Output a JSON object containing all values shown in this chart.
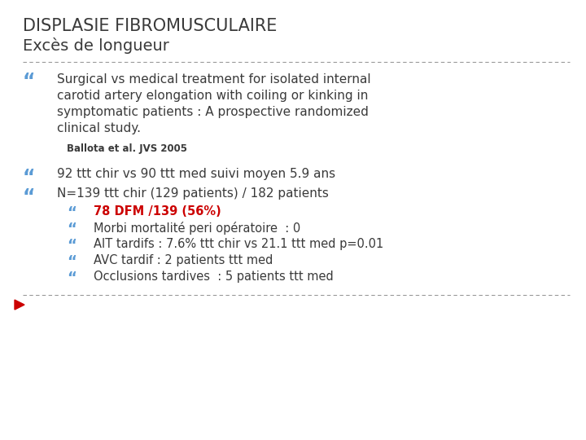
{
  "title_line1": "DISPLASIE FIBROMUSCULAIRE",
  "title_line2": "Excès de longueur",
  "title_color": "#3a3a3a",
  "title1_fontsize": 15,
  "title2_fontsize": 14,
  "separator_color": "#999999",
  "bullet_color": "#5b9bd5",
  "bullet_char": "“",
  "sub_bullet_char": "“",
  "body_color": "#3a3a3a",
  "bold_color": "#cc0000",
  "reference_color": "#3a3a3a",
  "arrow_color": "#cc0000",
  "background_color": "#ffffff",
  "bullet1_text_lines": [
    "Surgical vs medical treatment for isolated internal",
    "carotid artery elongation with coiling or kinking in",
    "symptomatic patients : A prospective randomized",
    "clinical study."
  ],
  "reference_text": "Ballota et al. JVS 2005",
  "bullet2_text": "92 ttt chir vs 90 ttt med suivi moyen 5.9 ans",
  "bullet3_text": "N=139 ttt chir (129 patients) / 182 patients",
  "sub_bullets": [
    {
      "text": "78 DFM /139 (56%)",
      "bold": true
    },
    {
      "text": "Morbi mortalité peri opératoire  : 0",
      "bold": false
    },
    {
      "text": "AIT tardifs : 7.6% ttt chir vs 21.1 ttt med p=0.01",
      "bold": false
    },
    {
      "text": "AVC tardif : 2 patients ttt med",
      "bold": false
    },
    {
      "text": "Occlusions tardives  : 5 patients ttt med",
      "bold": false
    }
  ]
}
